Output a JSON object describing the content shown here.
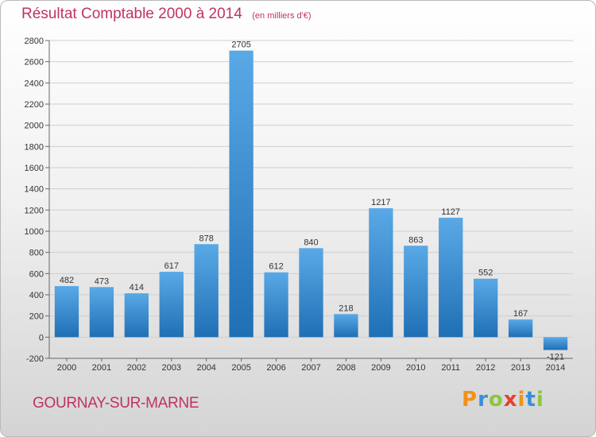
{
  "title": "Résultat Comptable 2000 à 2014",
  "subtitle": "(en milliers d'€)",
  "commune": "GOURNAY-SUR-MARNE",
  "logo": {
    "text": "Proxiti"
  },
  "colors": {
    "title": "#c0335d",
    "bar_light": "#5aa9e6",
    "bar_dark": "#1f6fb5"
  },
  "chart_data": {
    "type": "bar",
    "title": "Résultat Comptable 2000 à 2014",
    "subtitle": "(en milliers d'€)",
    "categories": [
      "2000",
      "2001",
      "2002",
      "2003",
      "2004",
      "2005",
      "2006",
      "2007",
      "2008",
      "2009",
      "2010",
      "2011",
      "2012",
      "2013",
      "2014"
    ],
    "values": [
      482,
      473,
      414,
      617,
      878,
      2705,
      612,
      840,
      218,
      1217,
      863,
      1127,
      552,
      167,
      -121
    ],
    "ylim": [
      -200,
      2800
    ],
    "yticks": [
      -200,
      0,
      200,
      400,
      600,
      800,
      1000,
      1200,
      1400,
      1600,
      1800,
      2000,
      2200,
      2400,
      2600,
      2800
    ],
    "grid": true,
    "data_labels": true
  }
}
